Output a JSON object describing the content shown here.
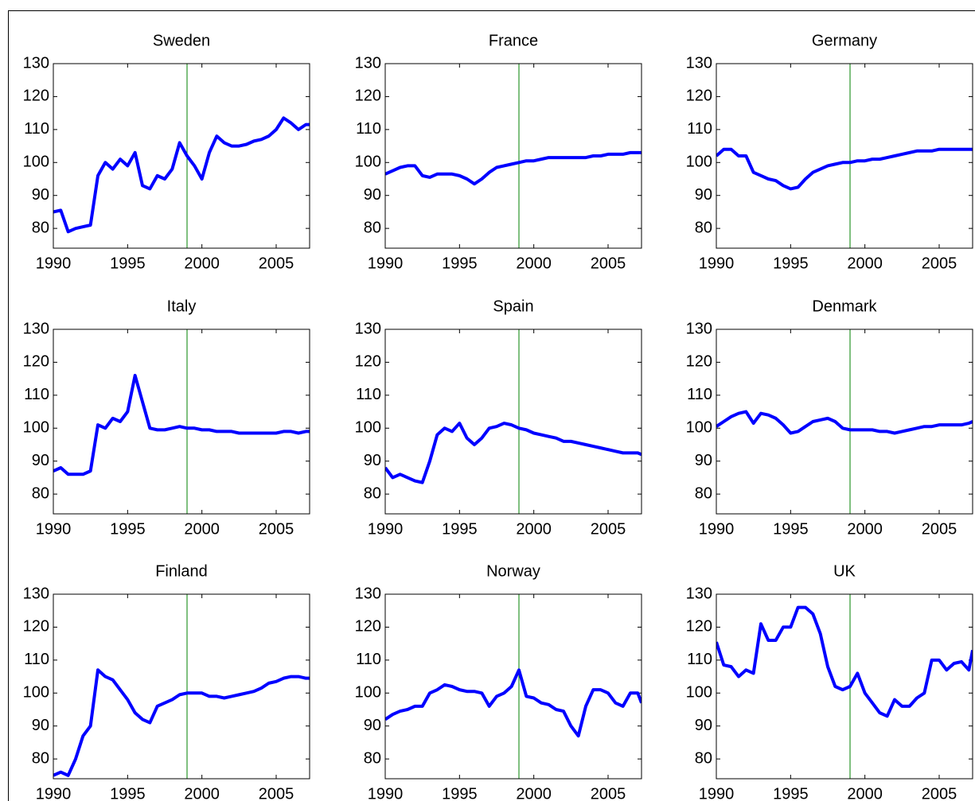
{
  "chart_data": [
    {
      "type": "line",
      "title": "Sweden",
      "color": "#0000ff",
      "vline_x": 1999,
      "vline_color": "#008000",
      "x": [
        1990,
        1990.5,
        1991,
        1991.5,
        1992,
        1992.5,
        1993,
        1993.5,
        1994,
        1994.5,
        1995,
        1995.5,
        1996,
        1996.5,
        1997,
        1997.5,
        1998,
        1998.5,
        1999,
        1999.5,
        2000,
        2000.5,
        2001,
        2001.5,
        2002,
        2002.5,
        2003,
        2003.5,
        2004,
        2004.5,
        2005,
        2005.5,
        2006,
        2006.5,
        2007,
        2007.25
      ],
      "values": [
        85,
        85.5,
        79,
        80,
        80.5,
        81,
        96,
        100,
        98,
        101,
        99,
        103,
        93,
        92,
        96,
        95,
        98,
        106,
        102,
        99,
        95,
        103,
        108,
        106,
        105,
        105,
        105.5,
        106.5,
        107,
        108,
        110,
        113.5,
        112,
        110,
        111.5,
        111.5
      ],
      "xlim": [
        1990,
        2007.25
      ],
      "ylim": [
        74,
        130
      ],
      "xticks": [
        1990,
        1995,
        2000,
        2005
      ],
      "yticks": [
        80,
        90,
        100,
        110,
        120,
        130
      ]
    },
    {
      "type": "line",
      "title": "France",
      "color": "#0000ff",
      "vline_x": 1999,
      "vline_color": "#008000",
      "x": [
        1990,
        1990.5,
        1991,
        1991.5,
        1992,
        1992.5,
        1993,
        1993.5,
        1994,
        1994.5,
        1995,
        1995.5,
        1996,
        1996.5,
        1997,
        1997.5,
        1998,
        1998.5,
        1999,
        1999.5,
        2000,
        2000.5,
        2001,
        2001.5,
        2002,
        2002.5,
        2003,
        2003.5,
        2004,
        2004.5,
        2005,
        2005.5,
        2006,
        2006.5,
        2007,
        2007.25
      ],
      "values": [
        96.5,
        97.5,
        98.5,
        99,
        99,
        96,
        95.5,
        96.5,
        96.5,
        96.5,
        96,
        95,
        93.5,
        95,
        97,
        98.5,
        99,
        99.5,
        100,
        100.5,
        100.5,
        101,
        101.5,
        101.5,
        101.5,
        101.5,
        101.5,
        101.5,
        102,
        102,
        102.5,
        102.5,
        102.5,
        103,
        103,
        103
      ],
      "xlim": [
        1990,
        2007.25
      ],
      "ylim": [
        74,
        130
      ],
      "xticks": [
        1990,
        1995,
        2000,
        2005
      ],
      "yticks": [
        80,
        90,
        100,
        110,
        120,
        130
      ]
    },
    {
      "type": "line",
      "title": "Germany",
      "color": "#0000ff",
      "vline_x": 1999,
      "vline_color": "#008000",
      "x": [
        1990,
        1990.5,
        1991,
        1991.5,
        1992,
        1992.5,
        1993,
        1993.5,
        1994,
        1994.5,
        1995,
        1995.5,
        1996,
        1996.5,
        1997,
        1997.5,
        1998,
        1998.5,
        1999,
        1999.5,
        2000,
        2000.5,
        2001,
        2001.5,
        2002,
        2002.5,
        2003,
        2003.5,
        2004,
        2004.5,
        2005,
        2005.5,
        2006,
        2006.5,
        2007,
        2007.25
      ],
      "values": [
        102,
        104,
        104,
        102,
        102,
        97,
        96,
        95,
        94.5,
        93,
        92,
        92.5,
        95,
        97,
        98,
        99,
        99.5,
        100,
        100,
        100.5,
        100.5,
        101,
        101,
        101.5,
        102,
        102.5,
        103,
        103.5,
        103.5,
        103.5,
        104,
        104,
        104,
        104,
        104,
        104
      ],
      "xlim": [
        1990,
        2007.25
      ],
      "ylim": [
        74,
        130
      ],
      "xticks": [
        1990,
        1995,
        2000,
        2005
      ],
      "yticks": [
        80,
        90,
        100,
        110,
        120,
        130
      ]
    },
    {
      "type": "line",
      "title": "Italy",
      "color": "#0000ff",
      "vline_x": 1999,
      "vline_color": "#008000",
      "x": [
        1990,
        1990.5,
        1991,
        1991.5,
        1992,
        1992.5,
        1993,
        1993.5,
        1994,
        1994.5,
        1995,
        1995.5,
        1996,
        1996.5,
        1997,
        1997.5,
        1998,
        1998.5,
        1999,
        1999.5,
        2000,
        2000.5,
        2001,
        2001.5,
        2002,
        2002.5,
        2003,
        2003.5,
        2004,
        2004.5,
        2005,
        2005.5,
        2006,
        2006.5,
        2007,
        2007.25
      ],
      "values": [
        87,
        88,
        86,
        86,
        86,
        87,
        101,
        100,
        103,
        102,
        105,
        116,
        108,
        100,
        99.5,
        99.5,
        100,
        100.5,
        100,
        100,
        99.5,
        99.5,
        99,
        99,
        99,
        98.5,
        98.5,
        98.5,
        98.5,
        98.5,
        98.5,
        99,
        99,
        98.5,
        99,
        99
      ],
      "xlim": [
        1990,
        2007.25
      ],
      "ylim": [
        74,
        130
      ],
      "xticks": [
        1990,
        1995,
        2000,
        2005
      ],
      "yticks": [
        80,
        90,
        100,
        110,
        120,
        130
      ]
    },
    {
      "type": "line",
      "title": "Spain",
      "color": "#0000ff",
      "vline_x": 1999,
      "vline_color": "#008000",
      "x": [
        1990,
        1990.5,
        1991,
        1991.5,
        1992,
        1992.5,
        1993,
        1993.5,
        1994,
        1994.5,
        1995,
        1995.5,
        1996,
        1996.5,
        1997,
        1997.5,
        1998,
        1998.5,
        1999,
        1999.5,
        2000,
        2000.5,
        2001,
        2001.5,
        2002,
        2002.5,
        2003,
        2003.5,
        2004,
        2004.5,
        2005,
        2005.5,
        2006,
        2006.5,
        2007,
        2007.25
      ],
      "values": [
        88,
        85,
        86,
        85,
        84,
        83.5,
        90,
        98,
        100,
        99,
        101.5,
        97,
        95,
        97,
        100,
        100.5,
        101.5,
        101,
        100,
        99.5,
        98.5,
        98,
        97.5,
        97,
        96,
        96,
        95.5,
        95,
        94.5,
        94,
        93.5,
        93,
        92.5,
        92.5,
        92.5,
        92
      ],
      "xlim": [
        1990,
        2007.25
      ],
      "ylim": [
        74,
        130
      ],
      "xticks": [
        1990,
        1995,
        2000,
        2005
      ],
      "yticks": [
        80,
        90,
        100,
        110,
        120,
        130
      ]
    },
    {
      "type": "line",
      "title": "Denmark",
      "color": "#0000ff",
      "vline_x": 1999,
      "vline_color": "#008000",
      "x": [
        1990,
        1990.5,
        1991,
        1991.5,
        1992,
        1992.5,
        1993,
        1993.5,
        1994,
        1994.5,
        1995,
        1995.5,
        1996,
        1996.5,
        1997,
        1997.5,
        1998,
        1998.5,
        1999,
        1999.5,
        2000,
        2000.5,
        2001,
        2001.5,
        2002,
        2002.5,
        2003,
        2003.5,
        2004,
        2004.5,
        2005,
        2005.5,
        2006,
        2006.5,
        2007,
        2007.25
      ],
      "values": [
        100.5,
        102,
        103.5,
        104.5,
        105,
        101.5,
        104.5,
        104,
        103,
        101,
        98.5,
        99,
        100.5,
        102,
        102.5,
        103,
        102,
        100,
        99.5,
        99.5,
        99.5,
        99.5,
        99,
        99,
        98.5,
        99,
        99.5,
        100,
        100.5,
        100.5,
        101,
        101,
        101,
        101,
        101.5,
        102
      ],
      "xlim": [
        1990,
        2007.25
      ],
      "ylim": [
        74,
        130
      ],
      "xticks": [
        1990,
        1995,
        2000,
        2005
      ],
      "yticks": [
        80,
        90,
        100,
        110,
        120,
        130
      ]
    },
    {
      "type": "line",
      "title": "Finland",
      "color": "#0000ff",
      "vline_x": 1999,
      "vline_color": "#008000",
      "x": [
        1990,
        1990.5,
        1991,
        1991.5,
        1992,
        1992.5,
        1993,
        1993.5,
        1994,
        1994.5,
        1995,
        1995.5,
        1996,
        1996.5,
        1997,
        1997.5,
        1998,
        1998.5,
        1999,
        1999.5,
        2000,
        2000.5,
        2001,
        2001.5,
        2002,
        2002.5,
        2003,
        2003.5,
        2004,
        2004.5,
        2005,
        2005.5,
        2006,
        2006.5,
        2007,
        2007.25
      ],
      "values": [
        75,
        76,
        75,
        80,
        87,
        90,
        107,
        105,
        104,
        101,
        98,
        94,
        92,
        91,
        96,
        97,
        98,
        99.5,
        100,
        100,
        100,
        99,
        99,
        98.5,
        99,
        99.5,
        100,
        100.5,
        101.5,
        103,
        103.5,
        104.5,
        105,
        105,
        104.5,
        104.5
      ],
      "xlim": [
        1990,
        2007.25
      ],
      "ylim": [
        74,
        130
      ],
      "xticks": [
        1990,
        1995,
        2000,
        2005
      ],
      "yticks": [
        80,
        90,
        100,
        110,
        120,
        130
      ]
    },
    {
      "type": "line",
      "title": "Norway",
      "color": "#0000ff",
      "vline_x": 1999,
      "vline_color": "#008000",
      "x": [
        1990,
        1990.5,
        1991,
        1991.5,
        1992,
        1992.5,
        1993,
        1993.5,
        1994,
        1994.5,
        1995,
        1995.5,
        1996,
        1996.5,
        1997,
        1997.5,
        1998,
        1998.5,
        1999,
        1999.5,
        2000,
        2000.5,
        2001,
        2001.5,
        2002,
        2002.5,
        2003,
        2003.5,
        2004,
        2004.5,
        2005,
        2005.5,
        2006,
        2006.5,
        2007,
        2007.25
      ],
      "values": [
        92,
        93.5,
        94.5,
        95,
        96,
        96,
        100,
        101,
        102.5,
        102,
        101,
        100.5,
        100.5,
        100,
        96,
        99,
        100,
        102,
        107,
        99,
        98.5,
        97,
        96.5,
        95,
        94.5,
        90,
        87,
        96,
        101,
        101,
        100,
        97,
        96,
        100,
        100,
        97
      ],
      "xlim": [
        1990,
        2007.25
      ],
      "ylim": [
        74,
        130
      ],
      "xticks": [
        1990,
        1995,
        2000,
        2005
      ],
      "yticks": [
        80,
        90,
        100,
        110,
        120,
        130
      ]
    },
    {
      "type": "line",
      "title": "UK",
      "color": "#0000ff",
      "vline_x": 1999,
      "vline_color": "#008000",
      "x": [
        1990,
        1990.5,
        1991,
        1991.5,
        1992,
        1992.5,
        1993,
        1993.5,
        1994,
        1994.5,
        1995,
        1995.5,
        1996,
        1996.5,
        1997,
        1997.5,
        1998,
        1998.5,
        1999,
        1999.5,
        2000,
        2000.5,
        2001,
        2001.5,
        2002,
        2002.5,
        2003,
        2003.5,
        2004,
        2004.5,
        2005,
        2005.5,
        2006,
        2006.5,
        2007,
        2007.25
      ],
      "values": [
        115.5,
        108.5,
        108,
        105,
        107,
        106,
        121,
        116,
        116,
        120,
        120,
        126,
        126,
        124,
        118,
        108,
        102,
        101,
        102,
        106,
        100,
        97,
        94,
        93,
        98,
        96,
        96,
        98.5,
        100,
        110,
        110,
        107,
        109,
        109.5,
        107,
        113
      ],
      "xlim": [
        1990,
        2007.25
      ],
      "ylim": [
        74,
        130
      ],
      "xticks": [
        1990,
        1995,
        2000,
        2005
      ],
      "yticks": [
        80,
        90,
        100,
        110,
        120,
        130
      ]
    }
  ]
}
